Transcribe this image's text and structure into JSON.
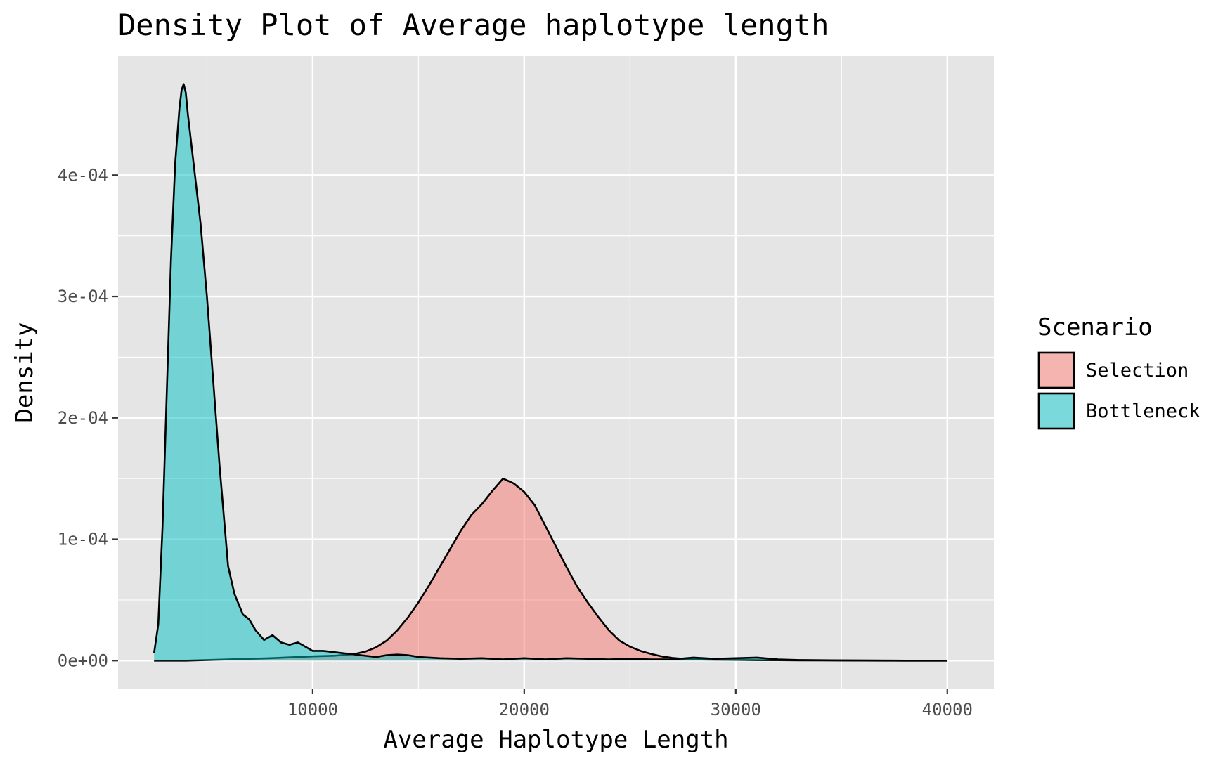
{
  "colors": {
    "panel_background": "#E5E5E5",
    "grid": "#FFFFFF",
    "outline": "#000000",
    "selection": "#F8766D",
    "bottleneck": "#00BFC4"
  },
  "chart_data": {
    "type": "area",
    "title": "Density Plot of Average haplotype length",
    "xlabel": "Average Haplotype Length",
    "ylabel": "Density",
    "xlim": [
      800,
      42200
    ],
    "ylim": [
      -2.3e-05,
      0.000498
    ],
    "x_ticks": [
      10000,
      20000,
      30000,
      40000
    ],
    "x_tick_labels": [
      "10000",
      "20000",
      "30000",
      "40000"
    ],
    "y_ticks": [
      0,
      0.0001,
      0.0002,
      0.0003,
      0.0004
    ],
    "y_tick_labels": [
      "0e+00",
      "1e-04",
      "2e-04",
      "3e-04",
      "4e-04"
    ],
    "grid": true,
    "fill_opacity": 0.5,
    "legend": {
      "title": "Scenario",
      "position": "right",
      "entries": [
        "Selection",
        "Bottleneck"
      ]
    },
    "series": [
      {
        "name": "Selection",
        "color": "#F8766D",
        "x": [
          2500,
          4000,
          6000,
          8000,
          10000,
          11000,
          12000,
          12500,
          13000,
          13500,
          14000,
          14500,
          15000,
          15500,
          16000,
          16500,
          17000,
          17500,
          18000,
          18500,
          19000,
          19500,
          20000,
          20500,
          21000,
          21500,
          22000,
          22500,
          23000,
          23500,
          24000,
          24500,
          25000,
          25500,
          26000,
          26500,
          27000,
          27500,
          28000,
          29000,
          30000,
          31000,
          32000,
          33000,
          35000,
          37000,
          40000
        ],
        "y": [
          0,
          0,
          1e-06,
          2e-06,
          3.5e-06,
          4e-06,
          5.5e-06,
          7.5e-06,
          1.1e-05,
          1.65e-05,
          2.5e-05,
          3.55e-05,
          4.8e-05,
          6.2e-05,
          7.7e-05,
          9.2e-05,
          0.000107,
          0.00012,
          0.000129,
          0.00014,
          0.00015,
          0.000146,
          0.000139,
          0.000128,
          0.000111,
          9.4e-05,
          7.7e-05,
          6.1e-05,
          4.8e-05,
          3.6e-05,
          2.5e-05,
          1.65e-05,
          1.15e-05,
          8e-06,
          5.5e-06,
          3.5e-06,
          2.2e-06,
          1.5e-06,
          1e-06,
          8e-07,
          6e-07,
          4e-07,
          3e-07,
          2e-07,
          1e-07,
          0,
          0
        ]
      },
      {
        "name": "Bottleneck",
        "color": "#00BFC4",
        "x": [
          2500,
          2700,
          2900,
          3100,
          3300,
          3500,
          3700,
          3800,
          3900,
          4000,
          4100,
          4300,
          4500,
          4700,
          5000,
          5300,
          5600,
          6000,
          6300,
          6700,
          7000,
          7300,
          7700,
          8100,
          8500,
          8900,
          9300,
          9700,
          10000,
          10500,
          11000,
          11500,
          12000,
          12500,
          13000,
          13500,
          14000,
          14500,
          15000,
          16000,
          17000,
          18000,
          19000,
          20000,
          21000,
          22000,
          23000,
          24000,
          25000,
          26000,
          27000,
          28000,
          29000,
          30000,
          31000,
          32000,
          33000,
          35000,
          38000,
          40000
        ],
        "y": [
          6e-06,
          3e-05,
          0.00011,
          0.00022,
          0.00033,
          0.00041,
          0.000455,
          0.00047,
          0.000475,
          0.000468,
          0.00045,
          0.00042,
          0.00039,
          0.00036,
          0.0003,
          0.00023,
          0.00016,
          7.8e-05,
          5.5e-05,
          3.8e-05,
          3.4e-05,
          2.5e-05,
          1.7e-05,
          2.1e-05,
          1.5e-05,
          1.3e-05,
          1.5e-05,
          1.1e-05,
          8e-06,
          8e-06,
          7e-06,
          6e-06,
          5e-06,
          4e-06,
          3e-06,
          4.5e-06,
          5e-06,
          4.5e-06,
          3e-06,
          2e-06,
          1.5e-06,
          2e-06,
          1e-06,
          2e-06,
          1e-06,
          2e-06,
          1.5e-06,
          1e-06,
          1.5e-06,
          1e-06,
          1e-06,
          2.5e-06,
          1.5e-06,
          2e-06,
          2.5e-06,
          1e-06,
          5e-07,
          2e-07,
          0,
          0
        ]
      }
    ]
  }
}
